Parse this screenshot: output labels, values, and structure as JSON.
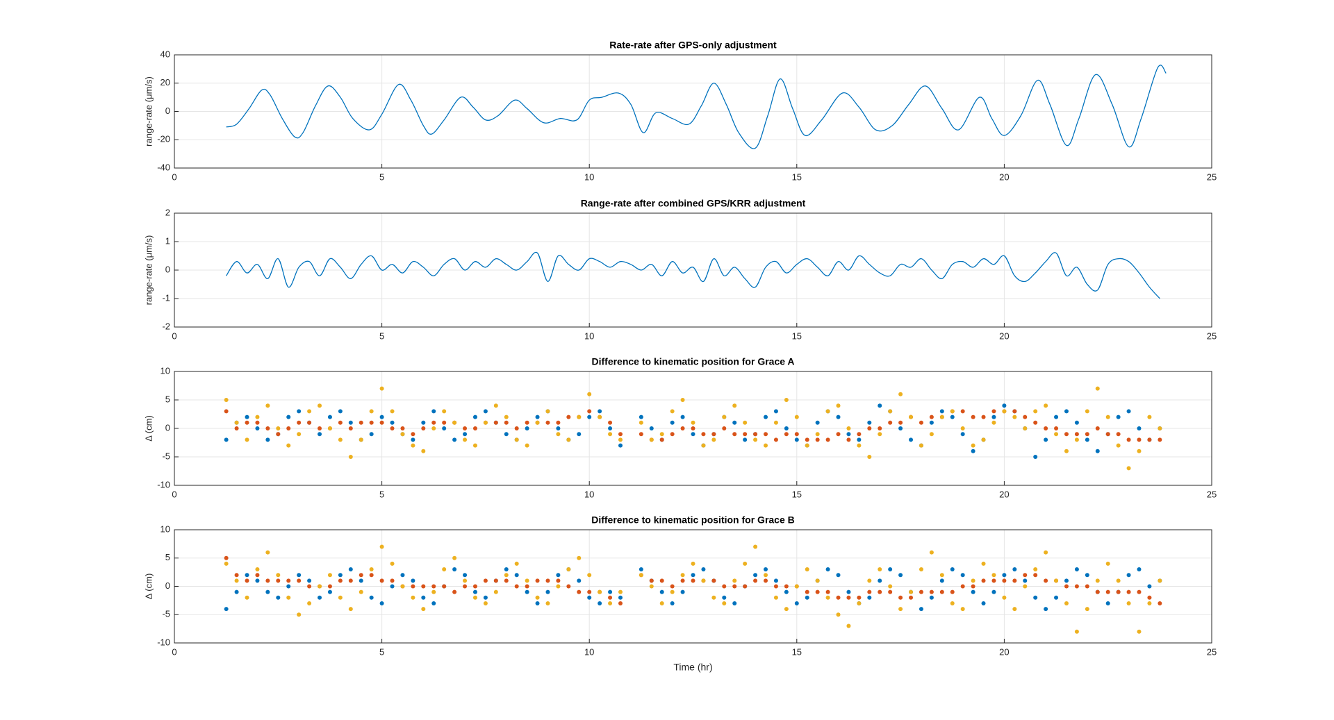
{
  "chart_data": [
    {
      "type": "line",
      "title": "Rate-rate after GPS-only adjustment",
      "ylabel": "range-rate (μm/s)",
      "color": "#0072bd",
      "x": [
        1.25,
        1.5,
        1.8,
        2.1,
        2.3,
        2.6,
        2.9,
        3.1,
        3.4,
        3.7,
        4.0,
        4.3,
        4.7,
        5.0,
        5.4,
        5.7,
        6.0,
        6.2,
        6.5,
        6.9,
        7.2,
        7.5,
        7.8,
        8.2,
        8.5,
        8.9,
        9.3,
        9.7,
        10.0,
        10.3,
        10.7,
        11.0,
        11.3,
        11.6,
        12.0,
        12.4,
        12.7,
        13.0,
        13.3,
        13.6,
        14.0,
        14.3,
        14.6,
        14.9,
        15.2,
        15.6,
        16.1,
        16.5,
        16.9,
        17.3,
        17.7,
        18.1,
        18.5,
        18.9,
        19.4,
        19.7,
        20.0,
        20.4,
        20.8,
        21.1,
        21.5,
        21.8,
        22.2,
        22.6,
        23.0,
        23.3,
        23.7,
        23.9
      ],
      "values": [
        -11,
        -9,
        2,
        15,
        12,
        -5,
        -18,
        -15,
        4,
        18,
        10,
        -5,
        -13,
        -2,
        19,
        8,
        -10,
        -16,
        -6,
        10,
        3,
        -6,
        -3,
        8,
        2,
        -8,
        -5,
        -6,
        8,
        10,
        13,
        5,
        -15,
        -1,
        -5,
        -9,
        4,
        20,
        5,
        -15,
        -26,
        -3,
        23,
        2,
        -17,
        -6,
        13,
        3,
        -13,
        -10,
        5,
        18,
        2,
        -13,
        10,
        -5,
        -17,
        -3,
        22,
        5,
        -24,
        -5,
        26,
        5,
        -25,
        -5,
        31,
        27
      ],
      "xlim": [
        0,
        25
      ],
      "xticks": [
        0,
        5,
        10,
        15,
        20,
        25
      ],
      "ylim": [
        -40,
        40
      ],
      "yticks": [
        -40,
        -20,
        0,
        20,
        40
      ],
      "grid": true
    },
    {
      "type": "line",
      "title": "Range-rate after combined GPS/KRR adjustment",
      "ylabel": "range-rate (μm/s)",
      "color": "#0072bd",
      "x": [
        1.25,
        1.5,
        1.75,
        2,
        2.25,
        2.5,
        2.75,
        3,
        3.25,
        3.5,
        3.75,
        4,
        4.25,
        4.5,
        4.75,
        5,
        5.25,
        5.5,
        5.75,
        6,
        6.25,
        6.5,
        6.75,
        7,
        7.25,
        7.5,
        7.75,
        8,
        8.25,
        8.5,
        8.75,
        9,
        9.25,
        9.5,
        9.75,
        10,
        10.25,
        10.5,
        10.75,
        11,
        11.25,
        11.5,
        11.75,
        12,
        12.25,
        12.5,
        12.75,
        13,
        13.25,
        13.5,
        13.75,
        14,
        14.25,
        14.5,
        14.75,
        15,
        15.25,
        15.5,
        15.75,
        16,
        16.25,
        16.5,
        16.75,
        17,
        17.25,
        17.5,
        17.75,
        18,
        18.25,
        18.5,
        18.75,
        19,
        19.25,
        19.5,
        19.75,
        20,
        20.25,
        20.5,
        20.75,
        21,
        21.25,
        21.5,
        21.75,
        22,
        22.25,
        22.5,
        22.75,
        23,
        23.25,
        23.5,
        23.75
      ],
      "values": [
        -0.2,
        0.3,
        -0.1,
        0.2,
        -0.3,
        0.4,
        -0.6,
        0.1,
        0.3,
        -0.2,
        0.4,
        0.1,
        -0.3,
        0.2,
        0.5,
        0.0,
        0.2,
        -0.1,
        0.3,
        0.1,
        -0.2,
        0.2,
        0.4,
        0.0,
        0.3,
        0.1,
        0.4,
        0.2,
        0.0,
        0.3,
        0.6,
        -0.4,
        0.5,
        0.2,
        0.0,
        0.4,
        0.3,
        0.1,
        0.3,
        0.2,
        0.0,
        0.2,
        -0.2,
        0.3,
        -0.1,
        0.1,
        -0.4,
        0.4,
        -0.2,
        0.1,
        -0.3,
        -0.6,
        0.1,
        0.3,
        -0.1,
        0.2,
        0.4,
        0.1,
        -0.2,
        0.3,
        0.0,
        0.5,
        0.2,
        -0.1,
        -0.2,
        0.2,
        0.1,
        0.4,
        0.0,
        -0.3,
        0.2,
        0.3,
        0.1,
        0.4,
        0.2,
        0.5,
        -0.2,
        -0.4,
        -0.1,
        0.3,
        0.6,
        -0.2,
        0.1,
        -0.5,
        -0.7,
        0.2,
        0.4,
        0.3,
        -0.1,
        -0.6,
        -1.0
      ],
      "xlim": [
        0,
        25
      ],
      "xticks": [
        0,
        5,
        10,
        15,
        20,
        25
      ],
      "ylim": [
        -2,
        2
      ],
      "yticks": [
        -2,
        -1,
        0,
        1,
        2
      ],
      "grid": true
    },
    {
      "type": "scatter",
      "title": "Difference to kinematic position for Grace A",
      "ylabel": "Δ (cm)",
      "x": [
        1.25,
        1.5,
        1.75,
        2,
        2.25,
        2.5,
        2.75,
        3,
        3.25,
        3.5,
        3.75,
        4,
        4.25,
        4.5,
        4.75,
        5,
        5.25,
        5.5,
        5.75,
        6,
        6.25,
        6.5,
        6.75,
        7,
        7.25,
        7.5,
        7.75,
        8,
        8.25,
        8.5,
        8.75,
        9,
        9.25,
        9.5,
        9.75,
        10,
        10.25,
        10.5,
        10.75,
        11.25,
        11.5,
        11.75,
        12,
        12.25,
        12.5,
        12.75,
        13,
        13.25,
        13.5,
        13.75,
        14,
        14.25,
        14.5,
        14.75,
        15,
        15.25,
        15.5,
        15.75,
        16,
        16.25,
        16.5,
        16.75,
        17,
        17.25,
        17.5,
        17.75,
        18,
        18.25,
        18.5,
        18.75,
        19,
        19.25,
        19.5,
        19.75,
        20,
        20.25,
        20.5,
        20.75,
        21,
        21.25,
        21.5,
        21.75,
        22,
        22.25,
        22.5,
        22.75,
        23,
        23.25,
        23.5,
        23.75
      ],
      "series": [
        {
          "color": "#0072bd",
          "values": [
            -2,
            1,
            2,
            0,
            -2,
            -1,
            2,
            3,
            1,
            -1,
            2,
            3,
            1,
            -2,
            -1,
            2,
            1,
            -1,
            -2,
            1,
            3,
            0,
            -2,
            -1,
            2,
            3,
            1,
            -1,
            -2,
            0,
            2,
            3,
            0,
            -2,
            -1,
            2,
            3,
            0,
            -3,
            2,
            0,
            -2,
            1,
            2,
            -1,
            -3,
            -1,
            2,
            1,
            -2,
            -1,
            2,
            3,
            0,
            -2,
            -3,
            1,
            3,
            2,
            -1,
            -2,
            1,
            4,
            3,
            0,
            -2,
            -3,
            1,
            3,
            2,
            -1,
            -4,
            -2,
            2,
            4,
            3,
            0,
            -5,
            -2,
            2,
            3,
            1,
            -2,
            -4,
            -1,
            2,
            3,
            0,
            -2,
            0
          ]
        },
        {
          "color": "#d95319",
          "values": [
            3,
            0,
            1,
            1,
            0,
            -1,
            0,
            1,
            1,
            0,
            0,
            1,
            0,
            1,
            1,
            1,
            0,
            0,
            -1,
            0,
            1,
            1,
            1,
            0,
            0,
            1,
            1,
            1,
            0,
            1,
            1,
            1,
            1,
            2,
            2,
            3,
            2,
            1,
            -1,
            -1,
            -2,
            -2,
            -1,
            0,
            0,
            -1,
            -1,
            0,
            -1,
            -1,
            -1,
            -1,
            -2,
            -1,
            -1,
            -2,
            -2,
            -2,
            -1,
            -2,
            -1,
            0,
            0,
            1,
            1,
            2,
            1,
            2,
            2,
            3,
            3,
            2,
            2,
            3,
            3,
            3,
            2,
            1,
            0,
            0,
            -1,
            -1,
            -1,
            0,
            -1,
            -1,
            -2,
            -2,
            -2,
            -2
          ]
        },
        {
          "color": "#edb120",
          "values": [
            5,
            1,
            -2,
            2,
            4,
            0,
            -3,
            -1,
            3,
            4,
            0,
            -2,
            -5,
            -2,
            3,
            7,
            3,
            -1,
            -3,
            -4,
            0,
            3,
            1,
            -2,
            -3,
            1,
            4,
            2,
            -2,
            -3,
            1,
            3,
            -1,
            -2,
            2,
            6,
            2,
            -1,
            -2,
            1,
            -2,
            -1,
            3,
            5,
            1,
            -3,
            -2,
            2,
            4,
            1,
            -2,
            -3,
            1,
            5,
            2,
            -3,
            -1,
            3,
            4,
            0,
            -3,
            -5,
            -1,
            3,
            6,
            2,
            -3,
            -1,
            2,
            3,
            0,
            -3,
            -2,
            1,
            3,
            2,
            0,
            3,
            4,
            -1,
            -4,
            -2,
            3,
            7,
            2,
            -3,
            -7,
            -4,
            2,
            0
          ]
        }
      ],
      "xlim": [
        0,
        25
      ],
      "xticks": [
        0,
        5,
        10,
        15,
        20,
        25
      ],
      "ylim": [
        -10,
        10
      ],
      "yticks": [
        -10,
        -5,
        0,
        5,
        10
      ],
      "grid": true
    },
    {
      "type": "scatter",
      "title": "Difference to kinematic position for Grace B",
      "ylabel": "Δ (cm)",
      "xlabel": "Time (hr)",
      "x": [
        1.25,
        1.5,
        1.75,
        2,
        2.25,
        2.5,
        2.75,
        3,
        3.25,
        3.5,
        3.75,
        4,
        4.25,
        4.5,
        4.75,
        5,
        5.25,
        5.5,
        5.75,
        6,
        6.25,
        6.5,
        6.75,
        7,
        7.25,
        7.5,
        7.75,
        8,
        8.25,
        8.5,
        8.75,
        9,
        9.25,
        9.5,
        9.75,
        10,
        10.25,
        10.5,
        10.75,
        11.25,
        11.5,
        11.75,
        12,
        12.25,
        12.5,
        12.75,
        13,
        13.25,
        13.5,
        13.75,
        14,
        14.25,
        14.5,
        14.75,
        15,
        15.25,
        15.5,
        15.75,
        16,
        16.25,
        16.5,
        16.75,
        17,
        17.25,
        17.5,
        17.75,
        18,
        18.25,
        18.5,
        18.75,
        19,
        19.25,
        19.5,
        19.75,
        20,
        20.25,
        20.5,
        20.75,
        21,
        21.25,
        21.5,
        21.75,
        22,
        22.25,
        22.5,
        22.75,
        23,
        23.25,
        23.5,
        23.75
      ],
      "series": [
        {
          "color": "#0072bd",
          "values": [
            -4,
            -1,
            2,
            1,
            -1,
            -2,
            0,
            2,
            1,
            -2,
            -1,
            2,
            3,
            1,
            -2,
            -3,
            0,
            2,
            1,
            -2,
            -3,
            0,
            3,
            2,
            -1,
            -2,
            1,
            3,
            2,
            -1,
            -3,
            -1,
            2,
            3,
            1,
            -2,
            -3,
            -1,
            -2,
            3,
            1,
            -1,
            -3,
            -1,
            2,
            3,
            1,
            -2,
            -3,
            0,
            2,
            3,
            1,
            -1,
            -3,
            -2,
            1,
            3,
            2,
            -1,
            -3,
            -2,
            1,
            3,
            2,
            -1,
            -4,
            -2,
            1,
            3,
            2,
            -1,
            -3,
            -1,
            2,
            3,
            1,
            -2,
            -4,
            -2,
            1,
            3,
            2,
            -1,
            -3,
            -1,
            2,
            3,
            0,
            1
          ]
        },
        {
          "color": "#d95319",
          "values": [
            5,
            2,
            1,
            2,
            1,
            1,
            1,
            1,
            0,
            0,
            0,
            1,
            1,
            2,
            2,
            1,
            1,
            0,
            0,
            0,
            0,
            0,
            -1,
            0,
            0,
            1,
            1,
            1,
            0,
            0,
            1,
            1,
            1,
            0,
            -1,
            -1,
            -1,
            -2,
            -3,
            2,
            1,
            1,
            0,
            1,
            1,
            1,
            1,
            0,
            0,
            0,
            1,
            1,
            0,
            0,
            0,
            -1,
            -1,
            -1,
            -2,
            -2,
            -2,
            -1,
            -1,
            -1,
            -2,
            -2,
            -1,
            -1,
            -1,
            -1,
            0,
            0,
            1,
            1,
            1,
            1,
            2,
            2,
            1,
            1,
            0,
            0,
            0,
            -1,
            -1,
            -1,
            -1,
            -1,
            -2,
            -3
          ]
        },
        {
          "color": "#edb120",
          "values": [
            4,
            1,
            -2,
            3,
            6,
            2,
            -2,
            -5,
            -3,
            0,
            2,
            -2,
            -4,
            -1,
            3,
            7,
            4,
            0,
            -2,
            -4,
            -1,
            3,
            5,
            1,
            -2,
            -3,
            -1,
            2,
            4,
            1,
            -2,
            -3,
            0,
            3,
            5,
            2,
            -1,
            -3,
            -1,
            2,
            0,
            -3,
            -1,
            2,
            4,
            1,
            -2,
            -3,
            1,
            4,
            7,
            2,
            -2,
            -4,
            0,
            3,
            1,
            -2,
            -5,
            -7,
            -3,
            1,
            3,
            0,
            -4,
            -1,
            3,
            6,
            2,
            -3,
            -4,
            1,
            4,
            2,
            -2,
            -4,
            0,
            3,
            6,
            1,
            -3,
            -8,
            -4,
            1,
            4,
            1,
            -3,
            -8,
            -3,
            1
          ]
        }
      ],
      "xlim": [
        0,
        25
      ],
      "xticks": [
        0,
        5,
        10,
        15,
        20,
        25
      ],
      "ylim": [
        -10,
        10
      ],
      "yticks": [
        -10,
        -5,
        0,
        5,
        10
      ],
      "grid": true
    }
  ]
}
